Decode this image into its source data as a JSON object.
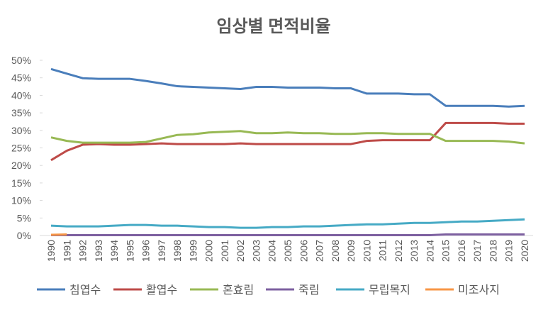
{
  "chart_data": {
    "type": "line",
    "title": "임상별 면적비율",
    "categories": [
      "1990",
      "1991",
      "1992",
      "1993",
      "1994",
      "1995",
      "1996",
      "1997",
      "1998",
      "1999",
      "2000",
      "2001",
      "2002",
      "2003",
      "2004",
      "2005",
      "2006",
      "2007",
      "2008",
      "2009",
      "2010",
      "2011",
      "2012",
      "2013",
      "2014",
      "2015",
      "2016",
      "2017",
      "2018",
      "2019",
      "2020"
    ],
    "ylim": [
      0,
      50
    ],
    "yticks": [
      {
        "value": 0,
        "label": "0%"
      },
      {
        "value": 5,
        "label": "5%"
      },
      {
        "value": 10,
        "label": "10%"
      },
      {
        "value": 15,
        "label": "15%"
      },
      {
        "value": 20,
        "label": "20%"
      },
      {
        "value": 25,
        "label": "25%"
      },
      {
        "value": 30,
        "label": "30%"
      },
      {
        "value": 35,
        "label": "35%"
      },
      {
        "value": 40,
        "label": "40%"
      },
      {
        "value": 45,
        "label": "45%"
      },
      {
        "value": 50,
        "label": "50%"
      }
    ],
    "legend": "bottom",
    "series": [
      {
        "name": "침엽수",
        "color": "#4a7ebb",
        "values": [
          47.5,
          46.2,
          44.9,
          44.7,
          44.7,
          44.7,
          44.1,
          43.4,
          42.6,
          42.4,
          42.2,
          42.0,
          41.8,
          42.4,
          42.4,
          42.2,
          42.2,
          42.2,
          42.0,
          42.0,
          40.5,
          40.5,
          40.5,
          40.3,
          40.3,
          37.0,
          37.0,
          37.0,
          37.0,
          36.8,
          37.0
        ]
      },
      {
        "name": "활엽수",
        "color": "#be4b48",
        "values": [
          21.5,
          24.2,
          25.9,
          26.1,
          25.9,
          25.9,
          26.1,
          26.3,
          26.1,
          26.1,
          26.1,
          26.1,
          26.3,
          26.1,
          26.1,
          26.1,
          26.1,
          26.1,
          26.1,
          26.1,
          27.0,
          27.2,
          27.2,
          27.2,
          27.2,
          32.1,
          32.1,
          32.1,
          32.1,
          31.9,
          31.9
        ]
      },
      {
        "name": "혼효림",
        "color": "#98b954",
        "values": [
          28.0,
          27.0,
          26.5,
          26.5,
          26.5,
          26.5,
          26.7,
          27.7,
          28.7,
          28.9,
          29.4,
          29.6,
          29.8,
          29.2,
          29.2,
          29.4,
          29.2,
          29.2,
          29.0,
          29.0,
          29.2,
          29.2,
          29.0,
          29.0,
          29.0,
          27.0,
          27.0,
          27.0,
          27.0,
          26.8,
          26.3
        ]
      },
      {
        "name": "죽림",
        "color": "#7d60a0",
        "values": [
          0.1,
          0.1,
          0.1,
          0.1,
          0.1,
          0.1,
          0.1,
          0.1,
          0.1,
          0.1,
          0.1,
          0.1,
          0.1,
          0.1,
          0.1,
          0.1,
          0.1,
          0.1,
          0.1,
          0.1,
          0.1,
          0.1,
          0.1,
          0.1,
          0.1,
          0.3,
          0.3,
          0.3,
          0.3,
          0.3,
          0.3
        ]
      },
      {
        "name": "무립목지",
        "color": "#46aac5",
        "values": [
          2.8,
          2.6,
          2.6,
          2.6,
          2.8,
          3.0,
          3.0,
          2.8,
          2.8,
          2.6,
          2.4,
          2.4,
          2.2,
          2.2,
          2.4,
          2.4,
          2.6,
          2.6,
          2.8,
          3.0,
          3.2,
          3.2,
          3.4,
          3.6,
          3.6,
          3.8,
          4.0,
          4.0,
          4.2,
          4.4,
          4.6
        ]
      },
      {
        "name": "미조사지",
        "color": "#f79646",
        "values": [
          0.2,
          0.3,
          null,
          null,
          null,
          null,
          null,
          null,
          null,
          null,
          null,
          null,
          null,
          null,
          null,
          null,
          null,
          null,
          null,
          null,
          null,
          null,
          null,
          null,
          null,
          null,
          null,
          null,
          null,
          null,
          null
        ]
      }
    ]
  }
}
